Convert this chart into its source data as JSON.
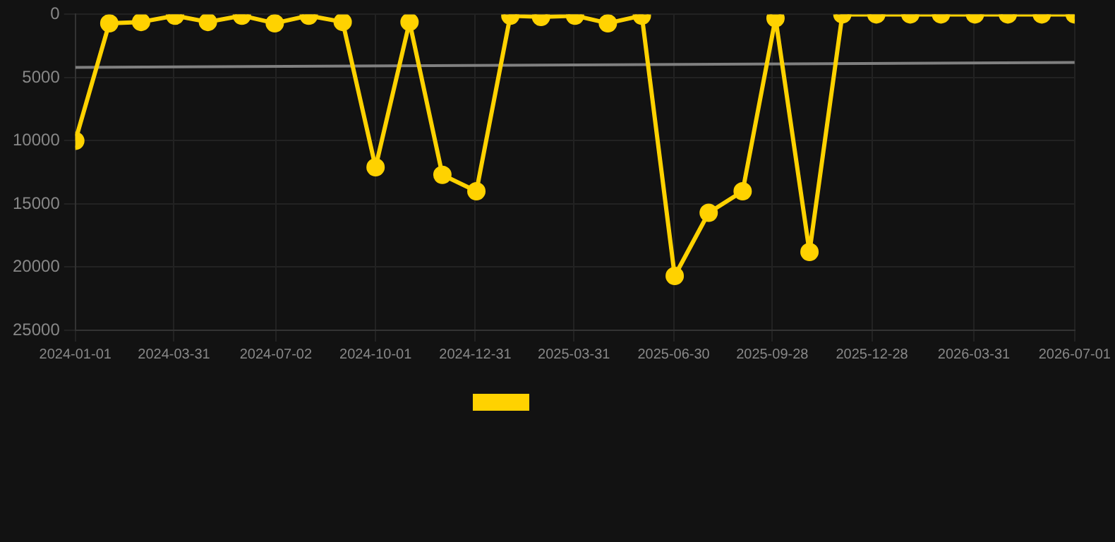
{
  "chart_data": {
    "type": "line",
    "x": [
      "2024-01-01",
      "2024-02-01",
      "2024-03-01",
      "2024-04-01",
      "2024-05-01",
      "2024-06-01",
      "2024-07-01",
      "2024-08-01",
      "2024-09-01",
      "2024-10-01",
      "2024-11-01",
      "2024-12-01",
      "2025-01-01",
      "2025-02-01",
      "2025-03-01",
      "2025-04-01",
      "2025-05-01",
      "2025-06-01",
      "2025-07-01",
      "2025-08-01",
      "2025-09-01",
      "2025-10-01",
      "2025-11-01",
      "2025-12-01",
      "2026-01-01",
      "2026-02-01",
      "2026-03-01",
      "2026-04-01",
      "2026-05-01",
      "2026-06-01",
      "2026-07-01"
    ],
    "series": [
      {
        "color": "#ffd200",
        "values": [
          10000,
          700,
          600,
          100,
          600,
          100,
          700,
          100,
          600,
          12100,
          600,
          12700,
          14000,
          100,
          200,
          100,
          700,
          100,
          20700,
          15700,
          14000,
          300,
          18800,
          0,
          0,
          0,
          0,
          0,
          0,
          0,
          0
        ]
      },
      {
        "type": "line",
        "color": "#808080",
        "marker": "none",
        "x": [
          "2024-01-01",
          "2026-07-01"
        ],
        "values": [
          4200,
          3800
        ]
      }
    ],
    "ylim": [
      25000,
      0
    ],
    "yticks": [
      0,
      5000,
      10000,
      15000,
      20000,
      25000
    ],
    "xlim": [
      "2024-01-01",
      "2026-07-01"
    ],
    "xticks": [
      "2024-01-01",
      "2024-03-31",
      "2024-07-02",
      "2024-10-01",
      "2024-12-31",
      "2025-03-31",
      "2025-06-30",
      "2025-09-28",
      "2025-12-28",
      "2026-03-31",
      "2026-07-01"
    ],
    "grid": true,
    "marker": "circle"
  }
}
